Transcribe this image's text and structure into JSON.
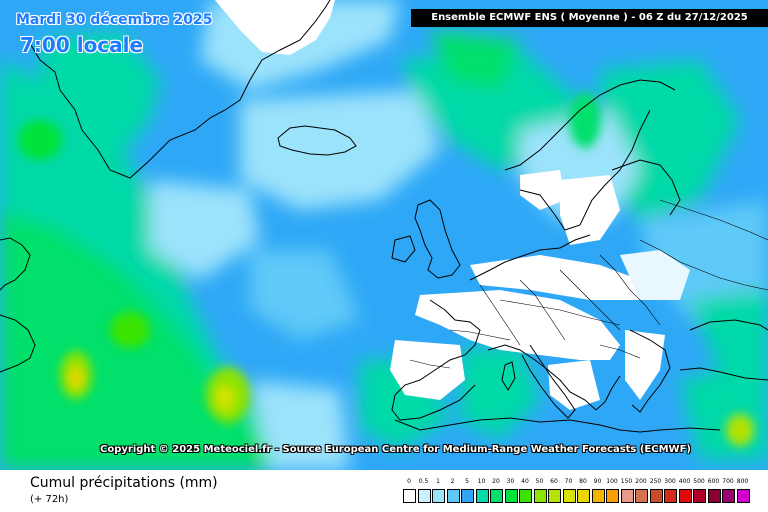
{
  "map": {
    "date_line": "Mardi 30 décembre 2025",
    "time_line": "7:00 locale",
    "title": "Ensemble ECMWF ENS  ( Moyenne )  -  06 Z du 27/12/2025",
    "copyright": "Copyright © 2025 Meteociel.fr - Source European Centre for Medium-Range Weather Forecasts (ECMWF)",
    "product_title": "Cumul précipitations (mm)",
    "lead_time": "(+ 72h)",
    "colors": {
      "ocean_base": "#2ea8f6",
      "dry_land": "#ffffff",
      "coastline": "#000000",
      "overlay_text": "#1e7cff"
    },
    "legend": {
      "labels": [
        "0",
        "0.5",
        "1",
        "2",
        "5",
        "10",
        "20",
        "30",
        "40",
        "50",
        "60",
        "70",
        "80",
        "90",
        "100",
        "150",
        "200",
        "250",
        "300",
        "400",
        "500",
        "600",
        "700",
        "800"
      ],
      "colors": [
        "#ffffff",
        "#c9f1ff",
        "#9be2fb",
        "#5ec9f8",
        "#2ea8f6",
        "#00d9a8",
        "#00e06b",
        "#00e23a",
        "#3ae400",
        "#8de300",
        "#b3e300",
        "#d6e300",
        "#e9d500",
        "#f3b400",
        "#f7a000",
        "#e8998a",
        "#d4734f",
        "#c64c2d",
        "#d52b1a",
        "#e00a0a",
        "#b0002a",
        "#8a0030",
        "#9b0070",
        "#d000d0"
      ]
    }
  }
}
